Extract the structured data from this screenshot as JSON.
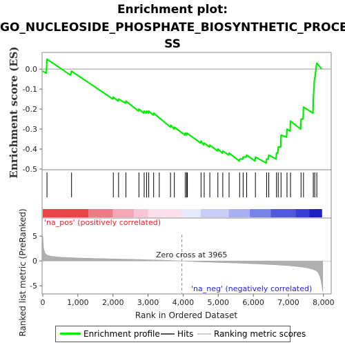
{
  "title_line1": "Enrichment plot:",
  "title_line2": "GO_NUCLEOSIDE_PHOSPHATE_BIOSYNTHETIC_PROCE",
  "title_line3": "SS",
  "colors": {
    "profile": "#00ee00",
    "hits": "#000000",
    "metric_fill": "#b0b0b0",
    "pos_text": "#ee2222",
    "neg_text": "#2222ee",
    "zero_line": "#999999"
  },
  "legend": {
    "profile": "Enrichment profile",
    "hits": "Hits",
    "metric": "Ranking metric scores"
  },
  "chart_data": [
    {
      "type": "line",
      "name": "enrichment-profile",
      "ylabel": "Enrichment score (ES)",
      "ylim": [
        -0.5,
        0.08
      ],
      "yticks": [
        -0.5,
        -0.4,
        -0.3,
        -0.2,
        -0.1,
        0.0
      ],
      "ytick_labels": [
        "-0.5",
        "-0.4",
        "-0.3",
        "-0.2",
        "-0.1",
        "0.0"
      ],
      "xlim": [
        0,
        8200
      ],
      "grid": false,
      "x": [
        0,
        100,
        120,
        790,
        820,
        2000,
        2010,
        2150,
        2160,
        2360,
        2370,
        2730,
        2740,
        2880,
        2890,
        2950,
        2960,
        3010,
        3020,
        3150,
        3160,
        3640,
        3650,
        3740,
        3750,
        4050,
        4060,
        4100,
        4110,
        4500,
        4510,
        4590,
        4600,
        4750,
        4760,
        4980,
        4990,
        5120,
        5130,
        5300,
        5310,
        5600,
        5610,
        5700,
        5710,
        5800,
        5810,
        6050,
        6060,
        6370,
        6380,
        6430,
        6440,
        6650,
        6660,
        6700,
        6710,
        6780,
        6790,
        6950,
        6960,
        7050,
        7060,
        7350,
        7360,
        7420,
        7430,
        7700,
        7710,
        7740,
        7750,
        7800,
        7810,
        7950
      ],
      "y": [
        -0.01,
        -0.02,
        0.05,
        -0.03,
        -0.01,
        -0.15,
        -0.14,
        -0.16,
        -0.15,
        -0.17,
        -0.16,
        -0.21,
        -0.2,
        -0.22,
        -0.21,
        -0.22,
        -0.21,
        -0.22,
        -0.21,
        -0.23,
        -0.22,
        -0.29,
        -0.28,
        -0.3,
        -0.29,
        -0.33,
        -0.32,
        -0.33,
        -0.32,
        -0.37,
        -0.36,
        -0.38,
        -0.37,
        -0.39,
        -0.38,
        -0.41,
        -0.4,
        -0.42,
        -0.41,
        -0.43,
        -0.42,
        -0.46,
        -0.45,
        -0.45,
        -0.44,
        -0.44,
        -0.43,
        -0.46,
        -0.44,
        -0.47,
        -0.45,
        -0.45,
        -0.43,
        -0.45,
        -0.42,
        -0.42,
        -0.39,
        -0.39,
        -0.33,
        -0.34,
        -0.3,
        -0.31,
        -0.26,
        -0.3,
        -0.25,
        -0.25,
        -0.19,
        -0.22,
        -0.15,
        -0.06,
        -0.05,
        0.02,
        0.03,
        0.0
      ]
    },
    {
      "type": "scatter",
      "name": "hits",
      "xlim": [
        0,
        8200
      ],
      "x": [
        120,
        820,
        2010,
        2160,
        2370,
        2740,
        2890,
        2960,
        3020,
        3160,
        3320,
        3640,
        3750,
        4060,
        4100,
        4120,
        4510,
        4600,
        4760,
        4990,
        5130,
        5310,
        5610,
        5710,
        5810,
        6060,
        6380,
        6440,
        6660,
        6710,
        6790,
        6960,
        7060,
        7360,
        7430,
        7710,
        7750,
        7810
      ]
    },
    {
      "type": "area",
      "name": "ranking-metric",
      "ylabel": "Ranked list metric (PreRanked)",
      "xlabel": "Rank in Ordered Dataset",
      "xlim": [
        0,
        8200
      ],
      "ylim": [
        -6.5,
        8.5
      ],
      "yticks": [
        -5,
        0,
        5
      ],
      "ytick_labels": [
        "-5",
        "0",
        "5"
      ],
      "xticks": [
        0,
        1000,
        2000,
        3000,
        4000,
        5000,
        6000,
        7000,
        8000
      ],
      "xtick_labels": [
        "0",
        "1,000",
        "2,000",
        "3,000",
        "4,000",
        "5,000",
        "6,000",
        "7,000",
        "8,000"
      ],
      "x": [
        0,
        20,
        60,
        120,
        250,
        500,
        1000,
        1500,
        2000,
        2500,
        3000,
        3500,
        3965,
        4500,
        5000,
        5500,
        6000,
        6500,
        7000,
        7300,
        7500,
        7700,
        7800,
        7850,
        7900,
        7930,
        7960,
        7980
      ],
      "y": [
        5.0,
        2.6,
        1.6,
        1.2,
        0.95,
        0.75,
        0.6,
        0.5,
        0.42,
        0.33,
        0.24,
        0.14,
        0.0,
        -0.18,
        -0.3,
        -0.42,
        -0.55,
        -0.72,
        -0.95,
        -1.15,
        -1.35,
        -1.7,
        -2.0,
        -2.4,
        -3.1,
        -4.0,
        -5.3,
        -6.2
      ],
      "annotations": {
        "zero_cross": "Zero cross at 3965",
        "zero_cross_rank": 3965,
        "pos_label": "'na_pos' (positively correlated)",
        "neg_label": "'na_neg' (negatively correlated)"
      }
    }
  ]
}
